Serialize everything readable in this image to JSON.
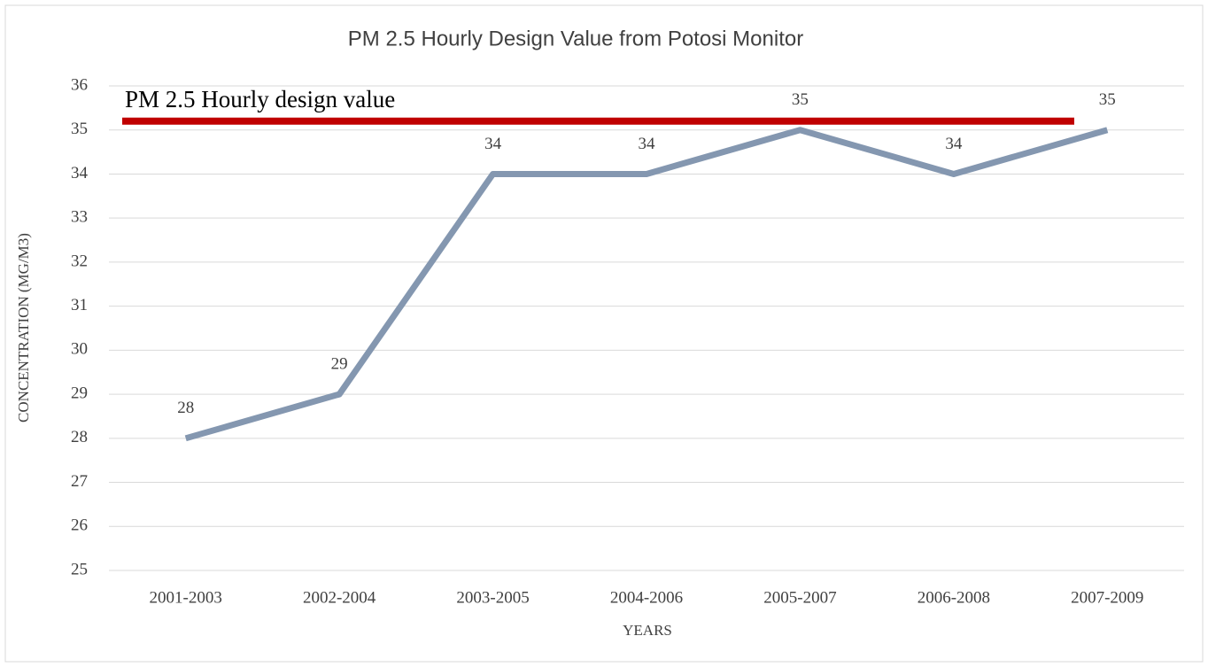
{
  "chart_data": {
    "type": "line",
    "title": "PM 2.5 Hourly Design Value from Potosi Monitor",
    "x_label": "YEARS",
    "y_label": "CONCENTRATION (MG/M3)",
    "categories": [
      "2001-2003",
      "2002-2004",
      "2003-2005",
      "2004-2006",
      "2005-2007",
      "2006-2008",
      "2007-2009"
    ],
    "series": [
      {
        "name": "PM 2.5",
        "color": "#8497b0",
        "values": [
          28,
          29,
          34,
          34,
          35,
          34,
          35
        ]
      }
    ],
    "reference_line": {
      "label": "PM 2.5 Hourly design value",
      "value": 35.2,
      "color": "#c00000"
    },
    "ylim": [
      25,
      36
    ],
    "yticks": [
      25,
      26,
      27,
      28,
      29,
      30,
      31,
      32,
      33,
      34,
      35,
      36
    ],
    "grid": true
  }
}
